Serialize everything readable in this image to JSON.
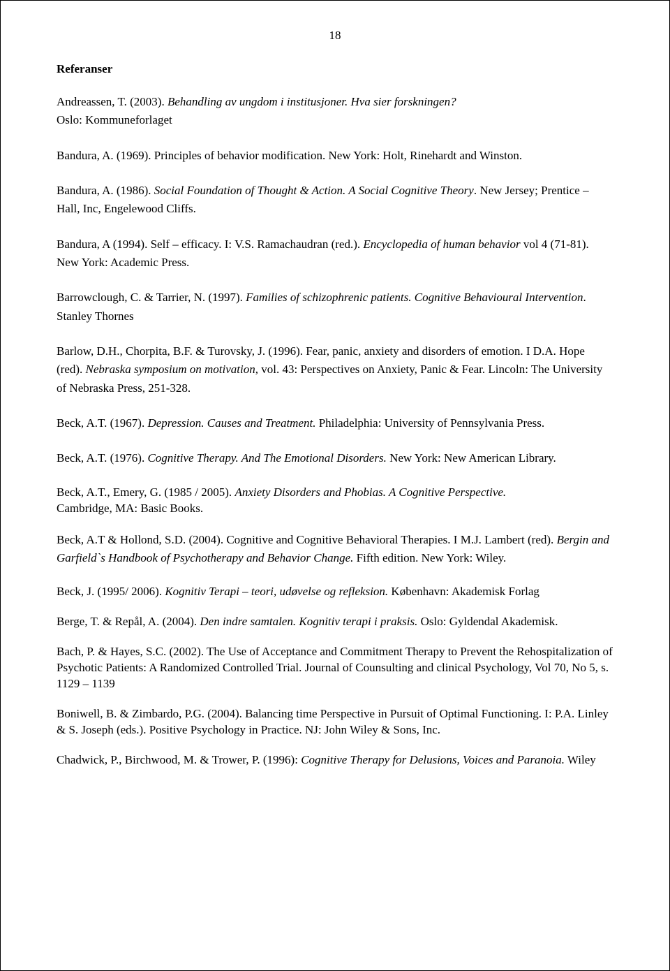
{
  "page_number": "18",
  "section_title": "Referanser",
  "entries": [
    {
      "r1a": "Andreassen, T. (2003). ",
      "r1b": "Behandling av ungdom i institusjoner. Hva sier forskningen?",
      "r1c": "Oslo: Kommuneforlaget"
    },
    {
      "r2a": "Bandura, A. (1969). Principles of  behavior modification. New York: Holt, Rinehardt and Winston."
    },
    {
      "r3a": "Bandura, A. (1986). ",
      "r3b": "Social Foundation of  Thought & Action. A Social Cognitive Theory",
      "r3c": ". New Jersey; Prentice – Hall, Inc, Engelewood Cliffs."
    },
    {
      "r4a": "Bandura, A (1994). Self – efficacy. I: V.S. Ramachaudran (red.). ",
      "r4b": "Encyclopedia of human behavior ",
      "r4c": "vol 4 (71-81). New York: Academic Press."
    },
    {
      "r5a": "Barrowclough, C. & Tarrier, N. (1997). ",
      "r5b": "Families of schizophrenic patients. Cognitive Behavioural Intervention",
      "r5c": ". Stanley Thornes"
    },
    {
      "r6a": "Barlow, D.H., Chorpita, B.F. & Turovsky, J. (1996). Fear, panic, anxiety and disorders of emotion. I D.A. Hope (red). ",
      "r6b": "Nebraska symposium on motivation",
      "r6c": ", vol. 43: Perspectives on Anxiety, Panic & Fear. Lincoln: The University of Nebraska Press, 251-328."
    },
    {
      "r7a": "Beck, A.T. (1967). ",
      "r7b": "Depression. Causes and Treatment.",
      "r7c": " Philadelphia: University of Pennsylvania Press."
    },
    {
      "r8a": "Beck, A.T. (1976). ",
      "r8b": "Cognitive Therapy. And The Emotional Disorders.",
      "r8c": " New York: New American Library."
    },
    {
      "r9a": "Beck, A.T., Emery, G. (1985 / 2005). ",
      "r9b": "Anxiety Disorders and Phobias. A Cognitive Perspective.",
      "r9c": "Cambridge, MA: Basic Books."
    },
    {
      "r10a": "Beck, A.T & Hollond, S.D. (2004).  Cognitive and Cognitive Behavioral Therapies. I M.J. Lambert (red). ",
      "r10b": "Bergin and Garfield`s Handbook of Psychotherapy and Behavior Change.",
      "r10c": " Fifth edition. New York: Wiley."
    },
    {
      "r11a": "Beck, J. (1995/ 2006). ",
      "r11b": "Kognitiv Terapi – teori, udøvelse og refleksion.",
      "r11c": "  København: Akademisk Forlag"
    },
    {
      "r12a": "Berge, T. & Repål, A. (2004). ",
      "r12b": "Den indre samtalen. Kognitiv terapi i praksis.",
      "r12c": " Oslo: Gyldendal Akademisk."
    },
    {
      "r13a": "Bach, P. & Hayes, S.C. (2002). The Use of Acceptance and Commitment Therapy to Prevent the Rehospitalization of Psychotic Patients: A Randomized Controlled Trial. Journal of Counsulting and clinical Psychology, Vol 70, No 5, s. 1129 – 1139"
    },
    {
      "r14a": "Boniwell, B. & Zimbardo, P.G. (2004). Balancing time Perspective in Pursuit of Optimal Functioning. I: P.A. Linley & S. Joseph (eds.). Positive Psychology in Practice. NJ: John Wiley & Sons, Inc."
    },
    {
      "r15a": "Chadwick, P., Birchwood, M. & Trower, P. (1996): ",
      "r15b": "Cognitive Therapy for Delusions, Voices and Paranoia.",
      "r15c": " Wiley"
    }
  ]
}
